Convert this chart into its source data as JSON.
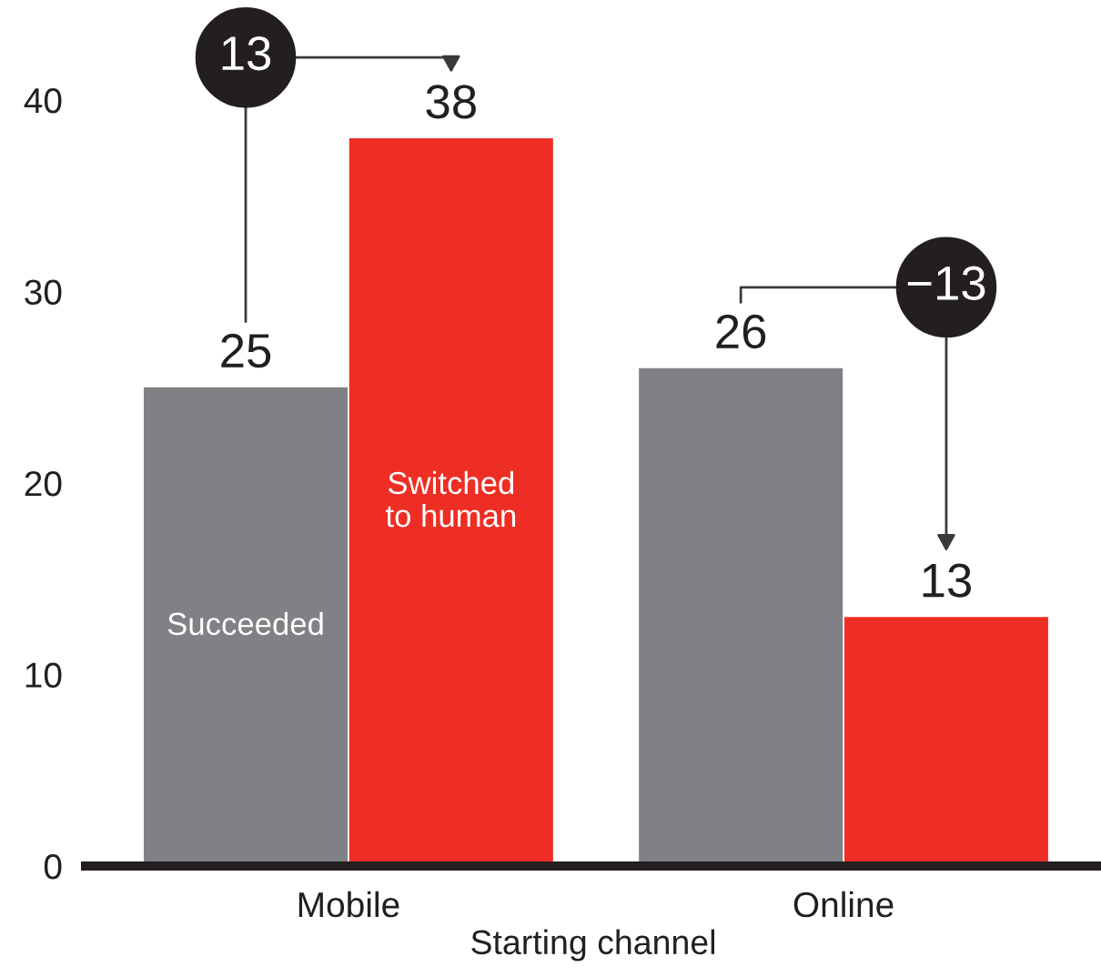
{
  "chart_data": {
    "type": "bar",
    "xlabel": "Starting channel",
    "categories": [
      "Mobile",
      "Online"
    ],
    "series": [
      {
        "name": "Succeeded",
        "color": "#808184",
        "values": [
          25,
          26
        ]
      },
      {
        "name": "Switched to human",
        "color": "#ee2e24",
        "values": [
          38,
          13
        ]
      }
    ],
    "ylim": [
      0,
      40
    ],
    "yticks": [
      0,
      10,
      20,
      30,
      40
    ],
    "data_labels": true,
    "grid": false,
    "legend": false,
    "annotations": [
      "13",
      "−13"
    ]
  }
}
